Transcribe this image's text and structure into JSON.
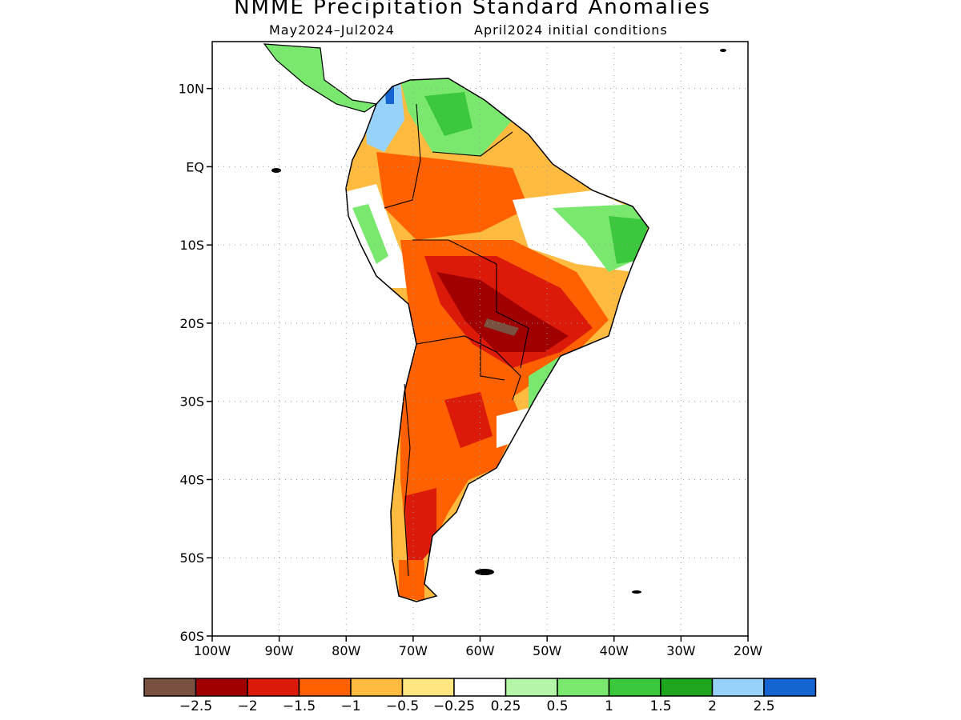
{
  "title": "NMME Precipitation Standard Anomalies",
  "subtitle_left": "May2024–Jul2024",
  "subtitle_right": "April2024 initial conditions",
  "map": {
    "lat_range": [
      -60,
      16
    ],
    "lon_range": [
      -100,
      -20
    ],
    "lat_labels": [
      "10N",
      "EQ",
      "10S",
      "20S",
      "30S",
      "40S",
      "50S",
      "60S"
    ],
    "lat_values": [
      10,
      0,
      -10,
      -20,
      -30,
      -40,
      -50,
      -60
    ],
    "lon_labels": [
      "100W",
      "90W",
      "80W",
      "70W",
      "60W",
      "50W",
      "40W",
      "30W",
      "20W"
    ],
    "lon_values": [
      -100,
      -90,
      -80,
      -70,
      -60,
      -50,
      -40,
      -30,
      -20
    ],
    "gridlines": true
  },
  "colorbar": {
    "colors": [
      "#7a5040",
      "#a00000",
      "#dc1a0a",
      "#ff6000",
      "#ffbb40",
      "#ffe680",
      "#ffffff",
      "#b4f5a8",
      "#7ae86e",
      "#3cc83c",
      "#1ea61e",
      "#96d2fa",
      "#1464d2"
    ],
    "labels": [
      "−2.5",
      "−2",
      "−1.5",
      "−1",
      "−0.5",
      "−0.25",
      "0.25",
      "0.5",
      "1",
      "1.5",
      "2",
      "2.5"
    ]
  }
}
